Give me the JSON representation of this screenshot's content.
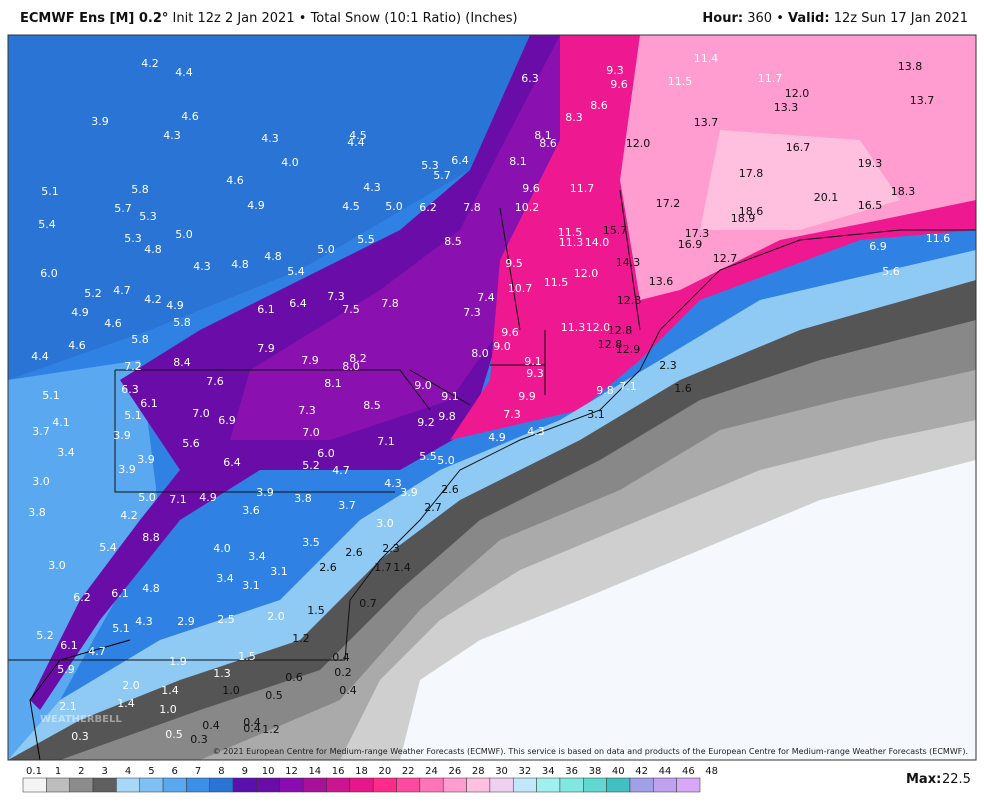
{
  "header": {
    "model": "ECMWF Ens [M] 0.2°",
    "init": "Init 12z 2 Jan 2021",
    "separator": "•",
    "product": "Total Snow (10:1 Ratio) (Inches)",
    "hour_label": "Hour:",
    "hour": "360",
    "valid_label": "Valid:",
    "valid": "12z Sun 17 Jan 2021"
  },
  "map": {
    "copyright": "© 2021 European Centre for Medium-range Weather Forecasts (ECMWF). This service is based on data and products of the European Centre for Medium-range Weather Forecasts (ECMWF).",
    "watermark": "WEATHERBELL",
    "labels": [
      "4.2",
      "4.4",
      "3.9",
      "4.6",
      "4.3",
      "4.3",
      "4.5",
      "4.4",
      "4.0",
      "5.3",
      "6.4",
      "6.3",
      "9.3",
      "9.6",
      "11.5",
      "11.4",
      "11.7",
      "12.0",
      "13.3",
      "13.8",
      "13.7",
      "8.6",
      "8.3",
      "13.7",
      "8.1",
      "8.6",
      "12.0",
      "16.7",
      "19.3",
      "8.1",
      "11.7",
      "17.8",
      "9.6",
      "5.7",
      "4.3",
      "4.6",
      "4.9",
      "4.5",
      "5.0",
      "6.2",
      "7.8",
      "10.2",
      "17.2",
      "18.6",
      "18.9",
      "20.1",
      "18.3",
      "16.5",
      "5.1",
      "5.8",
      "5.7",
      "5.3",
      "5.0",
      "5.4",
      "5.3",
      "4.8",
      "11.5",
      "11.3",
      "14.0",
      "15.7",
      "17.3",
      "16.9",
      "8.5",
      "5.5",
      "5.0",
      "4.8",
      "4.3",
      "4.8",
      "5.4",
      "6.0",
      "9.5",
      "14.3",
      "12.7",
      "6.9",
      "11.6",
      "10.7",
      "12.0",
      "11.5",
      "13.6",
      "5.6",
      "5.2",
      "4.7",
      "4.2",
      "4.9",
      "6.4",
      "7.3",
      "7.8",
      "7.4",
      "6.1",
      "7.5",
      "7.3",
      "12.8",
      "4.9",
      "4.6",
      "5.8",
      "11.3",
      "12.0",
      "12.8",
      "9.6",
      "5.8",
      "12.8",
      "12.9",
      "4.6",
      "7.9",
      "7.9",
      "8.2",
      "8.0",
      "8.0",
      "9.0",
      "9.1",
      "9.3",
      "4.4",
      "7.2",
      "8.4",
      "7.6",
      "8.1",
      "9.0",
      "9.1",
      "9.9",
      "9.8",
      "7.1",
      "2.3",
      "1.6",
      "5.1",
      "6.3",
      "6.1",
      "8.5",
      "9.2",
      "9.8",
      "7.3",
      "3.1",
      "4.1",
      "5.1",
      "7.0",
      "6.9",
      "7.3",
      "3.7",
      "3.9",
      "7.0",
      "7.1",
      "4.9",
      "4.3",
      "3.4",
      "5.6",
      "3.9",
      "3.9",
      "6.4",
      "6.0",
      "5.2",
      "4.7",
      "5.5",
      "5.0",
      "3.0",
      "4.3",
      "3.9",
      "2.6",
      "5.0",
      "7.1",
      "4.9",
      "3.9",
      "3.8",
      "3.7",
      "2.7",
      "3.8",
      "4.2",
      "3.6",
      "3.0",
      "5.4",
      "8.8",
      "4.0",
      "3.4",
      "3.5",
      "2.6",
      "2.3",
      "3.0",
      "1.7",
      "1.4",
      "3.4",
      "3.1",
      "3.1",
      "2.6",
      "6.2",
      "6.1",
      "4.8",
      "0.7",
      "1.5",
      "5.2",
      "4.3",
      "2.9",
      "2.5",
      "2.0",
      "5.1",
      "6.1",
      "4.7",
      "1.2",
      "0.4",
      "1.9",
      "1.5",
      "5.9",
      "1.3",
      "0.6",
      "0.2",
      "2.0",
      "1.4",
      "1.0",
      "0.5",
      "0.4",
      "2.1",
      "1.4",
      "1.0",
      "0.4",
      "0.4",
      "0.4",
      "0.3",
      "1.2",
      "0.5",
      "0.3"
    ]
  },
  "colorbar": {
    "labels": [
      "0.1",
      "1",
      "2",
      "3",
      "4",
      "5",
      "6",
      "7",
      "8",
      "9",
      "10",
      "12",
      "14",
      "16",
      "18",
      "20",
      "22",
      "24",
      "26",
      "28",
      "30",
      "32",
      "34",
      "36",
      "38",
      "40",
      "42",
      "44",
      "46",
      "48"
    ],
    "max_label": "Max:",
    "max_value": "22.5"
  }
}
